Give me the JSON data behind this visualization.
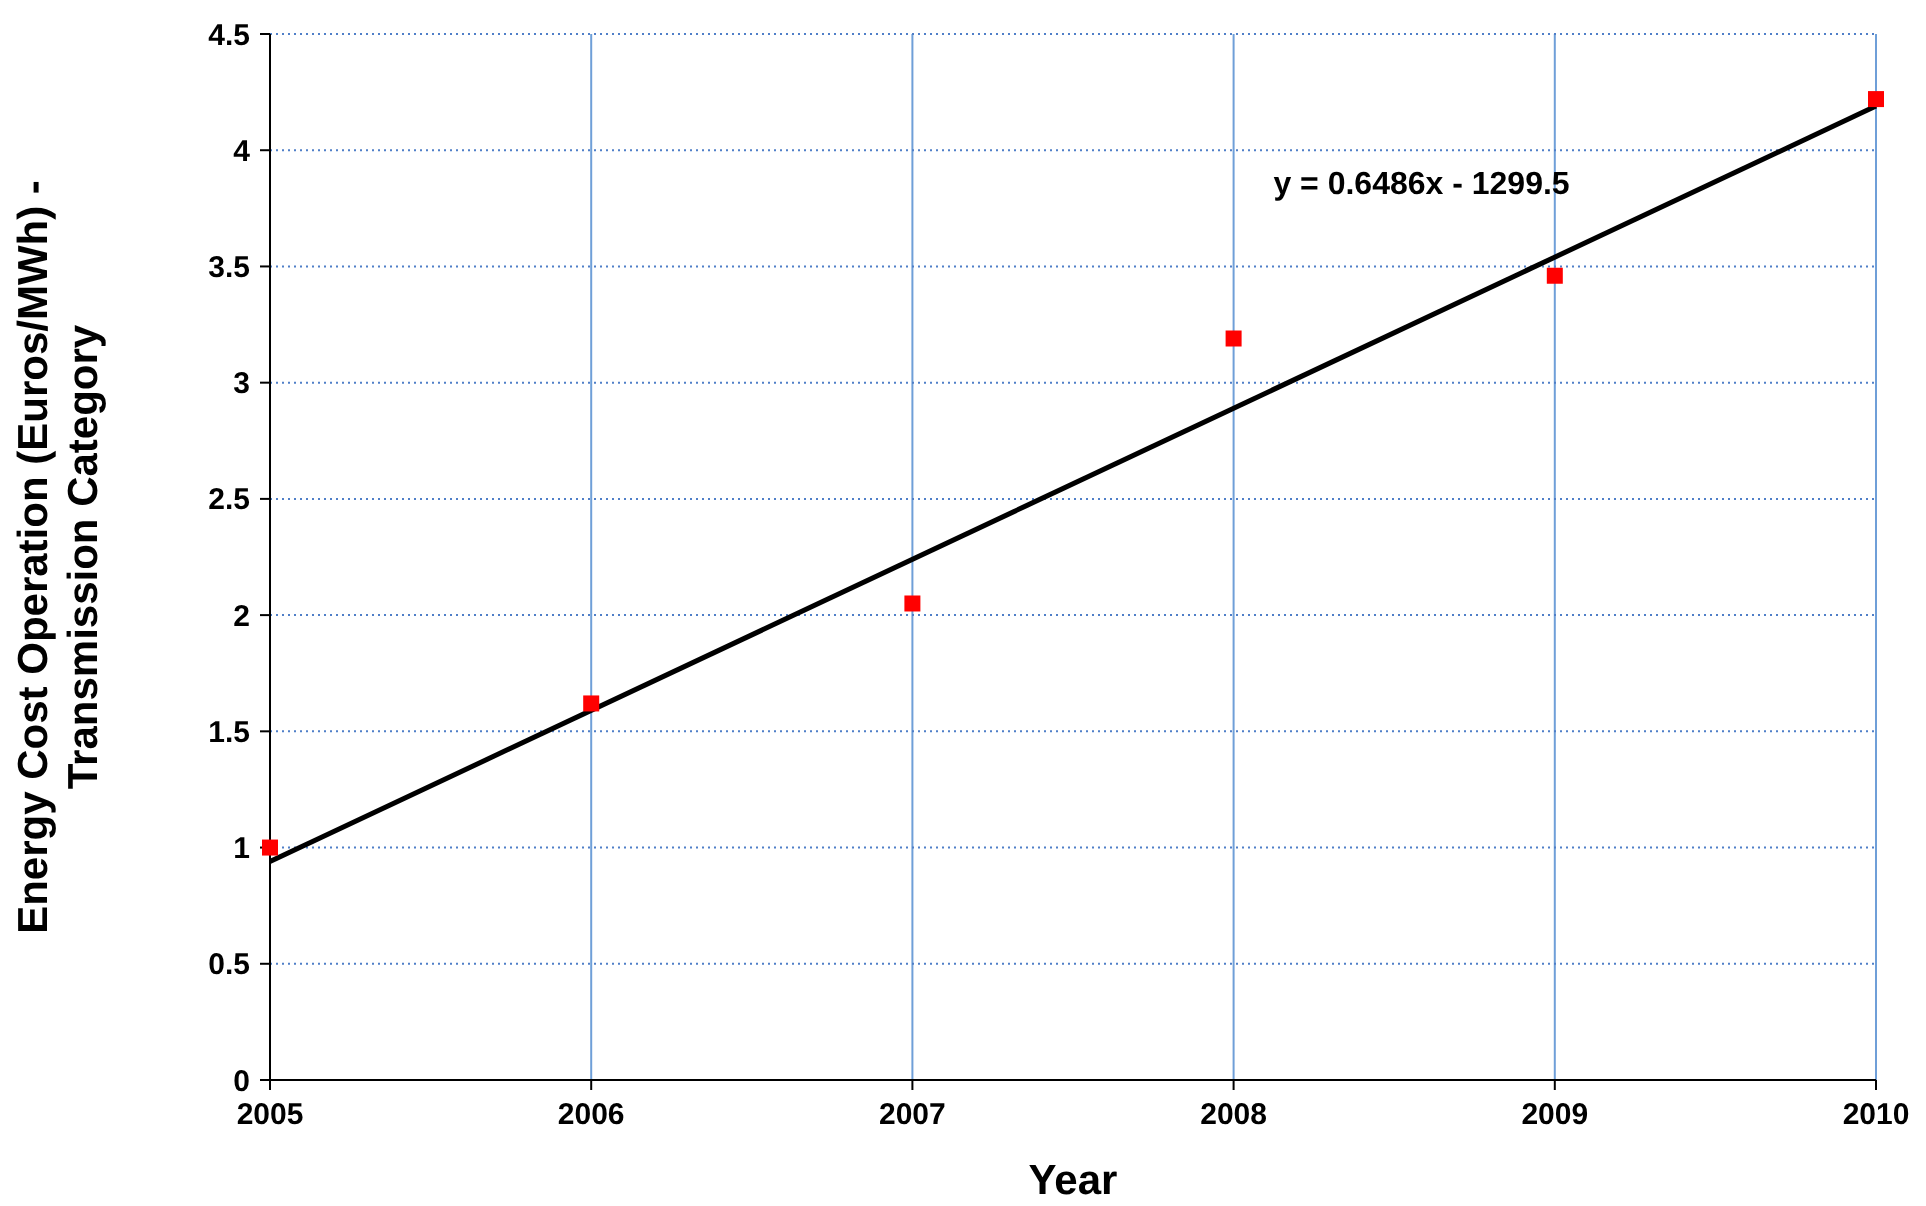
{
  "chart_data": {
    "type": "scatter",
    "xlabel": "Year",
    "ylabel": "Energy Cost Operation (Euros/MWh) - Transmission Category",
    "xlim": [
      2005,
      2010
    ],
    "xticks": [
      2005,
      2006,
      2007,
      2008,
      2009,
      2010
    ],
    "ylim": [
      0,
      4.5
    ],
    "yticks": [
      0,
      0.5,
      1,
      1.5,
      2,
      2.5,
      3,
      3.5,
      4,
      4.5
    ],
    "grid": true,
    "series": [
      {
        "type": "line",
        "color": "#000000",
        "x": [
          2005,
          2010
        ],
        "values": [
          0.94,
          4.19
        ],
        "marker": "none",
        "line_style": "solid"
      },
      {
        "color": "#ff0000",
        "x": [
          2005,
          2006,
          2007,
          2008,
          2009,
          2010
        ],
        "values": [
          1.0,
          1.62,
          2.05,
          3.19,
          3.46,
          4.22
        ],
        "marker": "square"
      }
    ],
    "annotations": [
      "y = 0.6486x - 1299.5"
    ]
  }
}
